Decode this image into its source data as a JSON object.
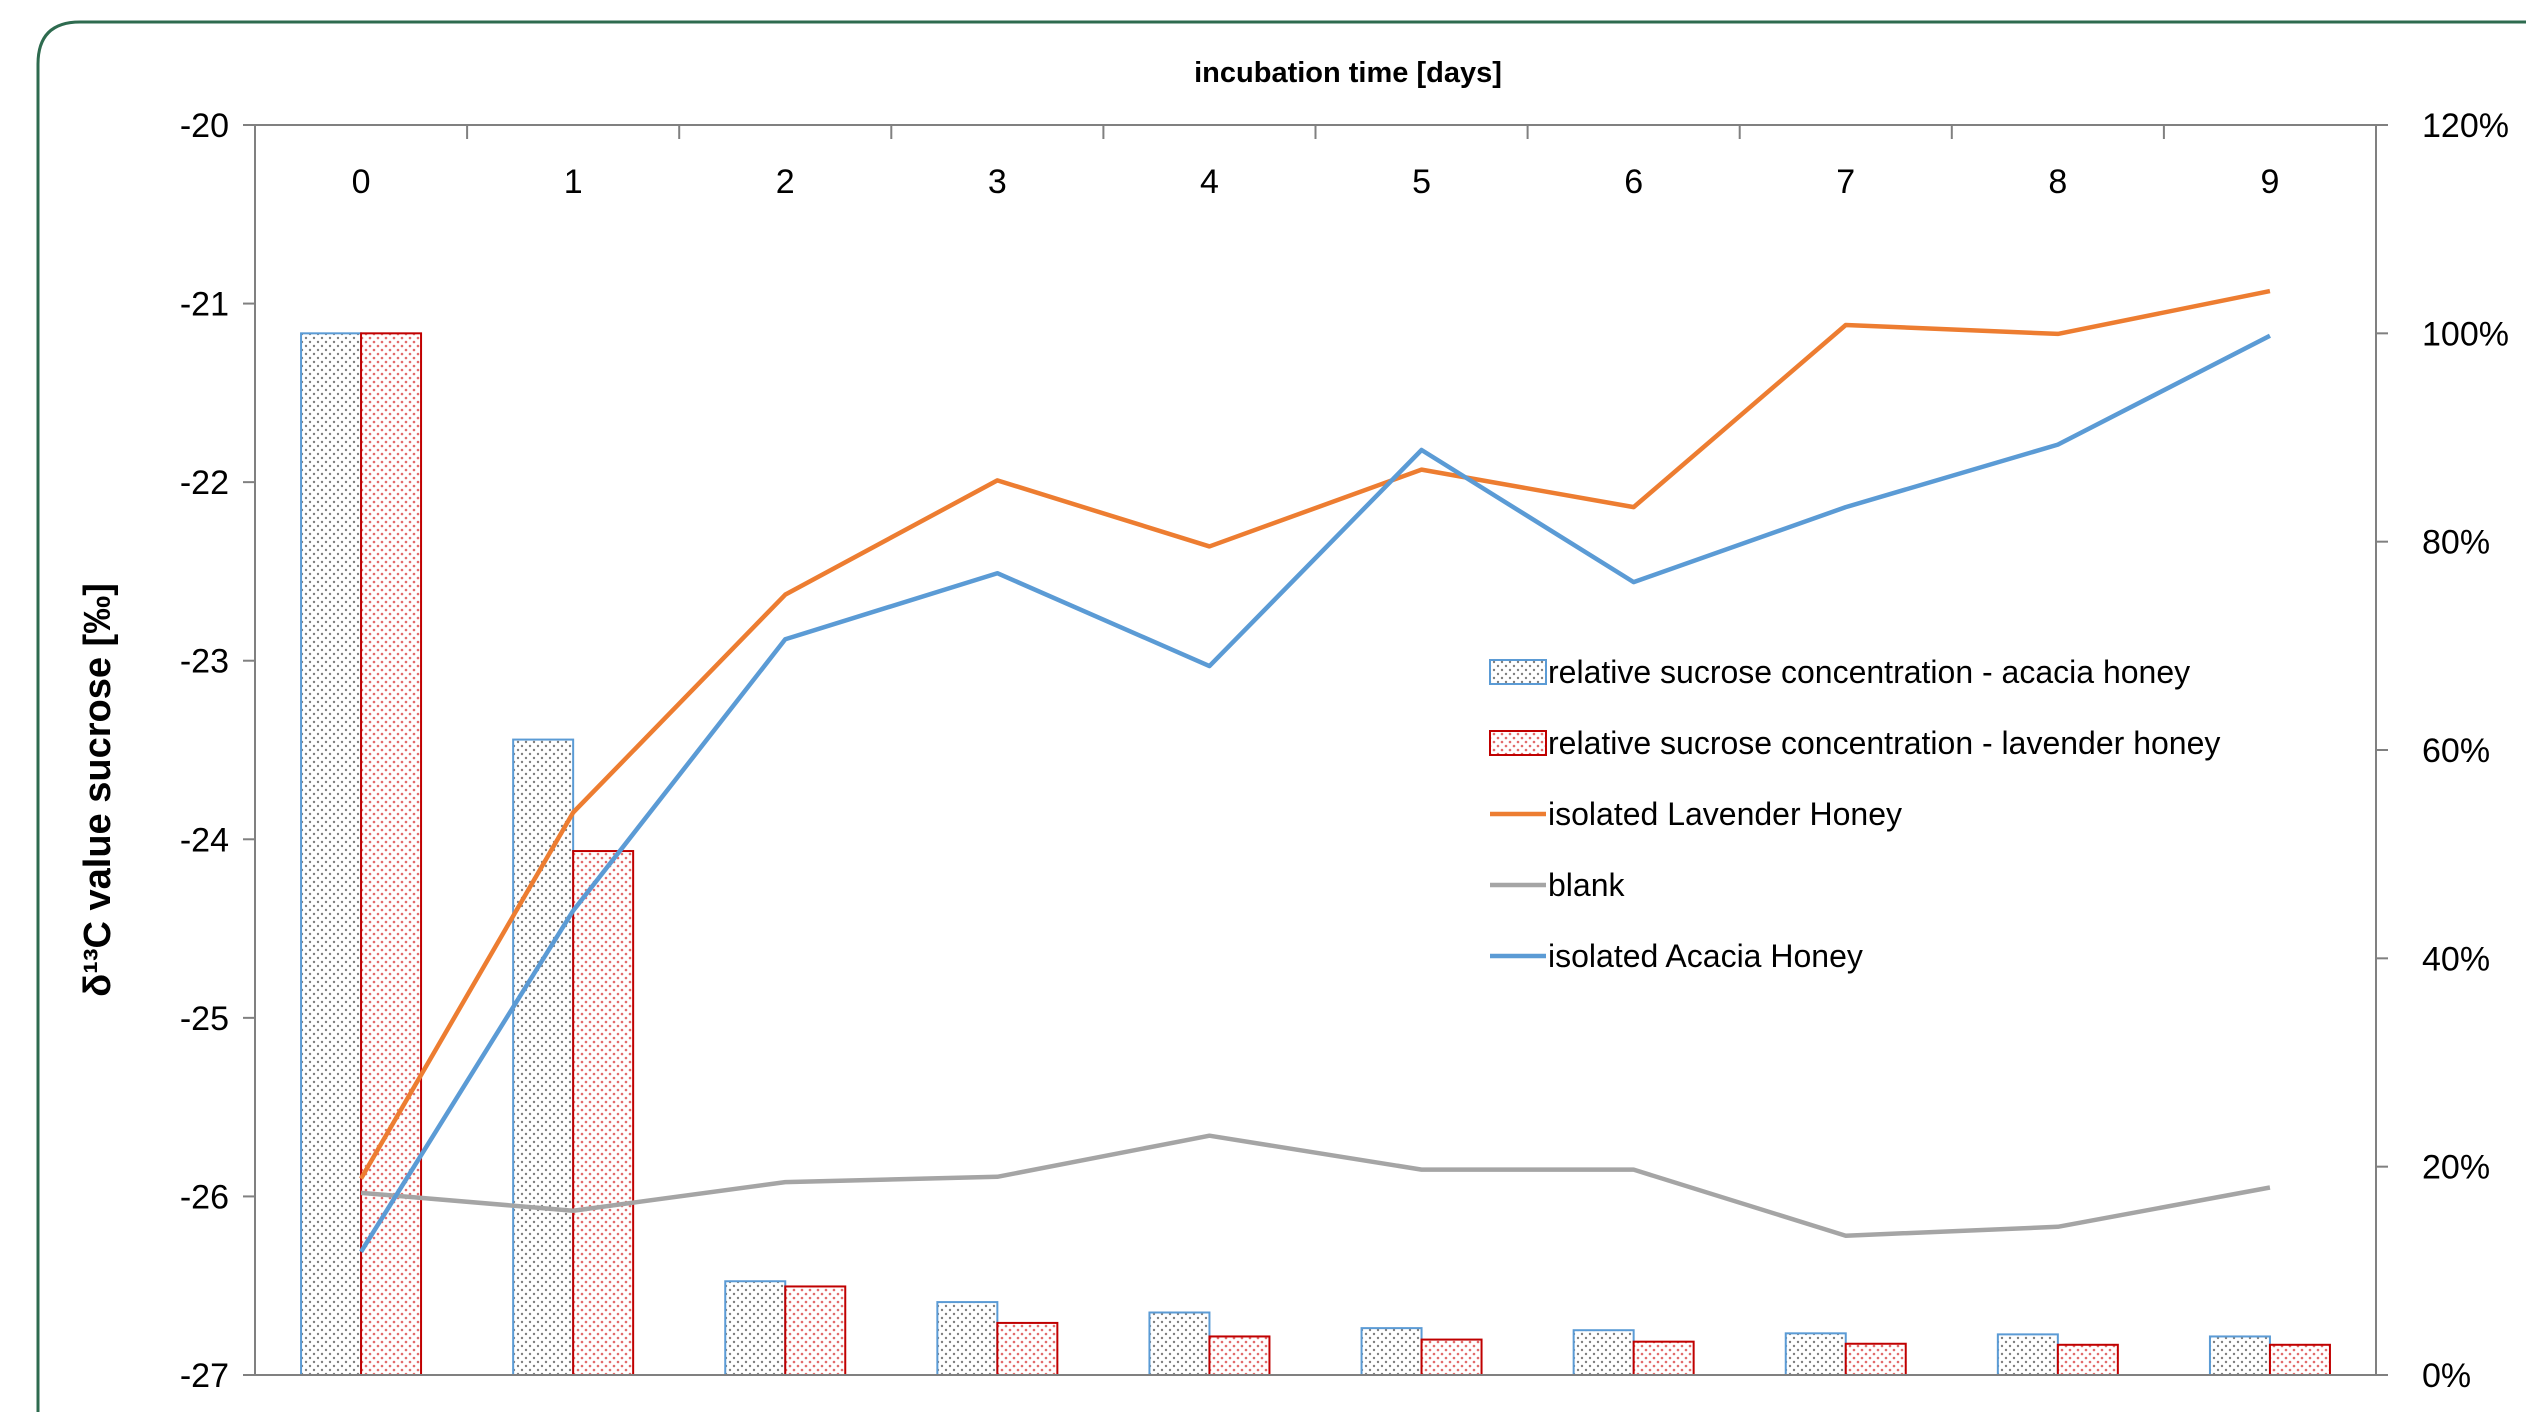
{
  "chart_data": {
    "type": "bar+line",
    "title": "",
    "xlabel": "incubation time [days]",
    "ylabel_left": "δ¹³C value sucrose [‰]",
    "ylabel_right": "",
    "categories": [
      "0",
      "1",
      "2",
      "3",
      "4",
      "5",
      "6",
      "7",
      "8",
      "9"
    ],
    "ylim_left": [
      -27,
      -20
    ],
    "yticks_left": [
      "-20",
      "-21",
      "-22",
      "-23",
      "-24",
      "-25",
      "-26",
      "-27"
    ],
    "ylim_right": [
      0,
      120
    ],
    "yticks_right": [
      "0%",
      "20%",
      "40%",
      "60%",
      "80%",
      "100%",
      "120%"
    ],
    "grid": false,
    "legend_position": "center-right",
    "bar_series": [
      {
        "name": "relative sucrose concentration - acacia honey",
        "axis": "right",
        "color": "#5b9bd5",
        "fill": "dotted-grey",
        "values": [
          100,
          61,
          9,
          7,
          6,
          4.5,
          4.3,
          4,
          3.9,
          3.7
        ]
      },
      {
        "name": "relative sucrose concentration - lavender honey",
        "axis": "right",
        "color": "#c00000",
        "fill": "dotted-red",
        "values": [
          100,
          50.3,
          8.5,
          5,
          3.7,
          3.4,
          3.2,
          3,
          2.9,
          2.9
        ]
      }
    ],
    "line_series": [
      {
        "name": "isolated Lavender Honey",
        "axis": "left",
        "color": "#ed7d31",
        "values": [
          -25.9,
          -23.85,
          -22.63,
          -21.99,
          -22.36,
          -21.93,
          -22.14,
          -21.12,
          -21.17,
          -20.93
        ]
      },
      {
        "name": "blank",
        "axis": "left",
        "color": "#a5a5a5",
        "values": [
          -25.98,
          -26.08,
          -25.92,
          -25.89,
          -25.66,
          -25.85,
          -25.85,
          -26.22,
          -26.17,
          -25.95
        ]
      },
      {
        "name": "isolated Acacia Honey",
        "axis": "left",
        "color": "#5b9bd5",
        "values": [
          -26.31,
          -24.4,
          -22.88,
          -22.51,
          -23.03,
          -21.82,
          -22.56,
          -22.14,
          -21.79,
          -21.18
        ]
      }
    ],
    "legend": [
      {
        "name": "relative sucrose concentration - acacia honey",
        "kind": "bar",
        "pattern": "pat-acacia",
        "stroke": "#5b9bd5"
      },
      {
        "name": "relative sucrose concentration - lavender honey",
        "kind": "bar",
        "pattern": "pat-lavender",
        "stroke": "#c00000"
      },
      {
        "name": "isolated Lavender Honey",
        "kind": "line",
        "stroke": "#ed7d31"
      },
      {
        "name": "blank",
        "kind": "line",
        "stroke": "#a5a5a5"
      },
      {
        "name": "isolated Acacia Honey",
        "kind": "line",
        "stroke": "#5b9bd5"
      }
    ]
  }
}
